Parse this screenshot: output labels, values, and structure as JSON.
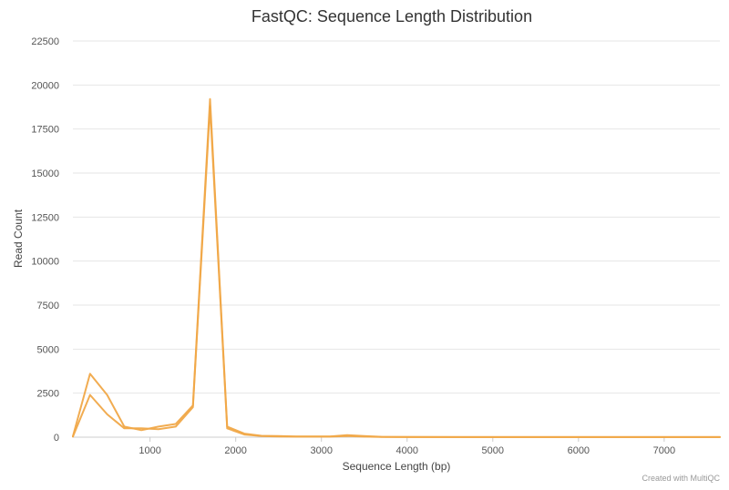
{
  "chart_data": {
    "type": "line",
    "title": "FastQC: Sequence Length Distribution",
    "xlabel": "Sequence Length (bp)",
    "ylabel": "Read Count",
    "credit": "Created with MultiQC",
    "xlim": [
      100,
      7650
    ],
    "ylim": [
      0,
      22500
    ],
    "xticks": [
      1000,
      2000,
      3000,
      4000,
      5000,
      6000,
      7000
    ],
    "yticks": [
      0,
      2500,
      5000,
      7500,
      10000,
      12500,
      15000,
      17500,
      20000,
      22500
    ],
    "grid": true,
    "legend": "none",
    "line_color": "#f0a848",
    "series": [
      {
        "x": [
          100,
          300,
          500,
          700,
          900,
          1100,
          1300,
          1500,
          1700,
          1900,
          2100,
          2300,
          2500,
          2700,
          2900,
          3100,
          3300,
          3500,
          3700,
          4000,
          5000,
          6000,
          7000,
          7650
        ],
        "y": [
          50,
          3600,
          2400,
          600,
          400,
          600,
          750,
          1800,
          19200,
          600,
          200,
          80,
          60,
          40,
          40,
          40,
          120,
          60,
          20,
          10,
          5,
          5,
          5,
          5
        ]
      },
      {
        "x": [
          100,
          300,
          500,
          700,
          900,
          1100,
          1300,
          1500,
          1700,
          1900,
          2100,
          2300,
          2500,
          2700,
          2900,
          3100,
          3300,
          3500,
          3700,
          4000,
          5000,
          6000,
          7000,
          7650
        ],
        "y": [
          30,
          2400,
          1300,
          500,
          500,
          450,
          600,
          1700,
          18800,
          500,
          150,
          60,
          40,
          30,
          30,
          30,
          60,
          30,
          10,
          5,
          3,
          3,
          3,
          3
        ]
      }
    ]
  }
}
